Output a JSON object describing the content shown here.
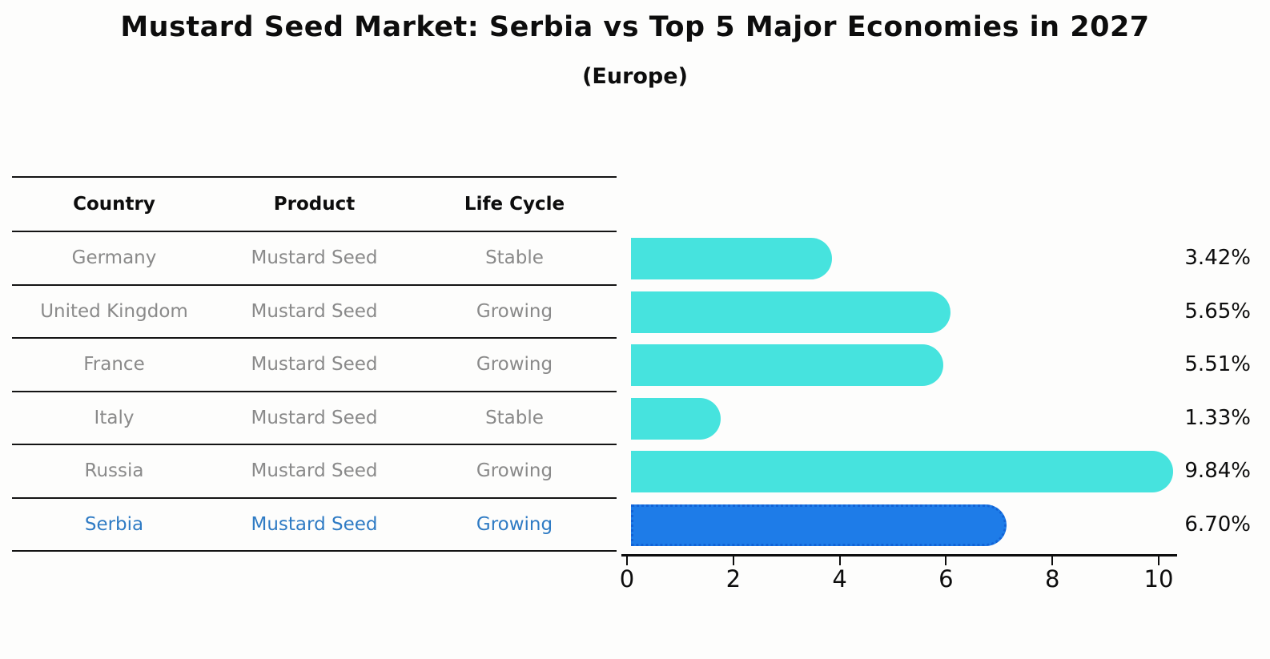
{
  "title": "Mustard Seed Market: Serbia vs Top 5 Major Economies in 2027",
  "subtitle": "(Europe)",
  "table": {
    "headers": [
      "Country",
      "Product",
      "Life Cycle"
    ],
    "rows": [
      {
        "country": "Germany",
        "product": "Mustard Seed",
        "life_cycle": "Stable",
        "highlight": false
      },
      {
        "country": "United Kingdom",
        "product": "Mustard Seed",
        "life_cycle": "Growing",
        "highlight": false
      },
      {
        "country": "France",
        "product": "Mustard Seed",
        "life_cycle": "Growing",
        "highlight": false
      },
      {
        "country": "Italy",
        "product": "Mustard Seed",
        "life_cycle": "Stable",
        "highlight": false
      },
      {
        "country": "Russia",
        "product": "Mustard Seed",
        "life_cycle": "Growing",
        "highlight": false
      },
      {
        "country": "Serbia",
        "product": "Mustard Seed",
        "life_cycle": "Growing",
        "highlight": true
      }
    ]
  },
  "chart_data": {
    "type": "bar",
    "orientation": "horizontal",
    "title": "Mustard Seed Market: Serbia vs Top 5 Major Economies in 2027",
    "subtitle": "(Europe)",
    "categories": [
      "Germany",
      "United Kingdom",
      "France",
      "Italy",
      "Russia",
      "Serbia"
    ],
    "values": [
      3.42,
      5.65,
      5.51,
      1.33,
      9.84,
      6.7
    ],
    "value_labels": [
      "3.42%",
      "5.65%",
      "5.51%",
      "1.33%",
      "9.84%",
      "6.70%"
    ],
    "xticks": [
      0,
      2,
      4,
      6,
      8,
      10
    ],
    "xlim": [
      0,
      10.5
    ],
    "grid": false,
    "legend": false,
    "highlight_index": 5
  },
  "colors": {
    "bar_teal": "#46e3de",
    "bar_highlight_fill": "#1e7ce8",
    "bar_highlight_border": "#1263d6",
    "highlight_text": "#2f7bc4",
    "row_text": "#8a8a8a",
    "axis_text": "#0d0d0d"
  }
}
